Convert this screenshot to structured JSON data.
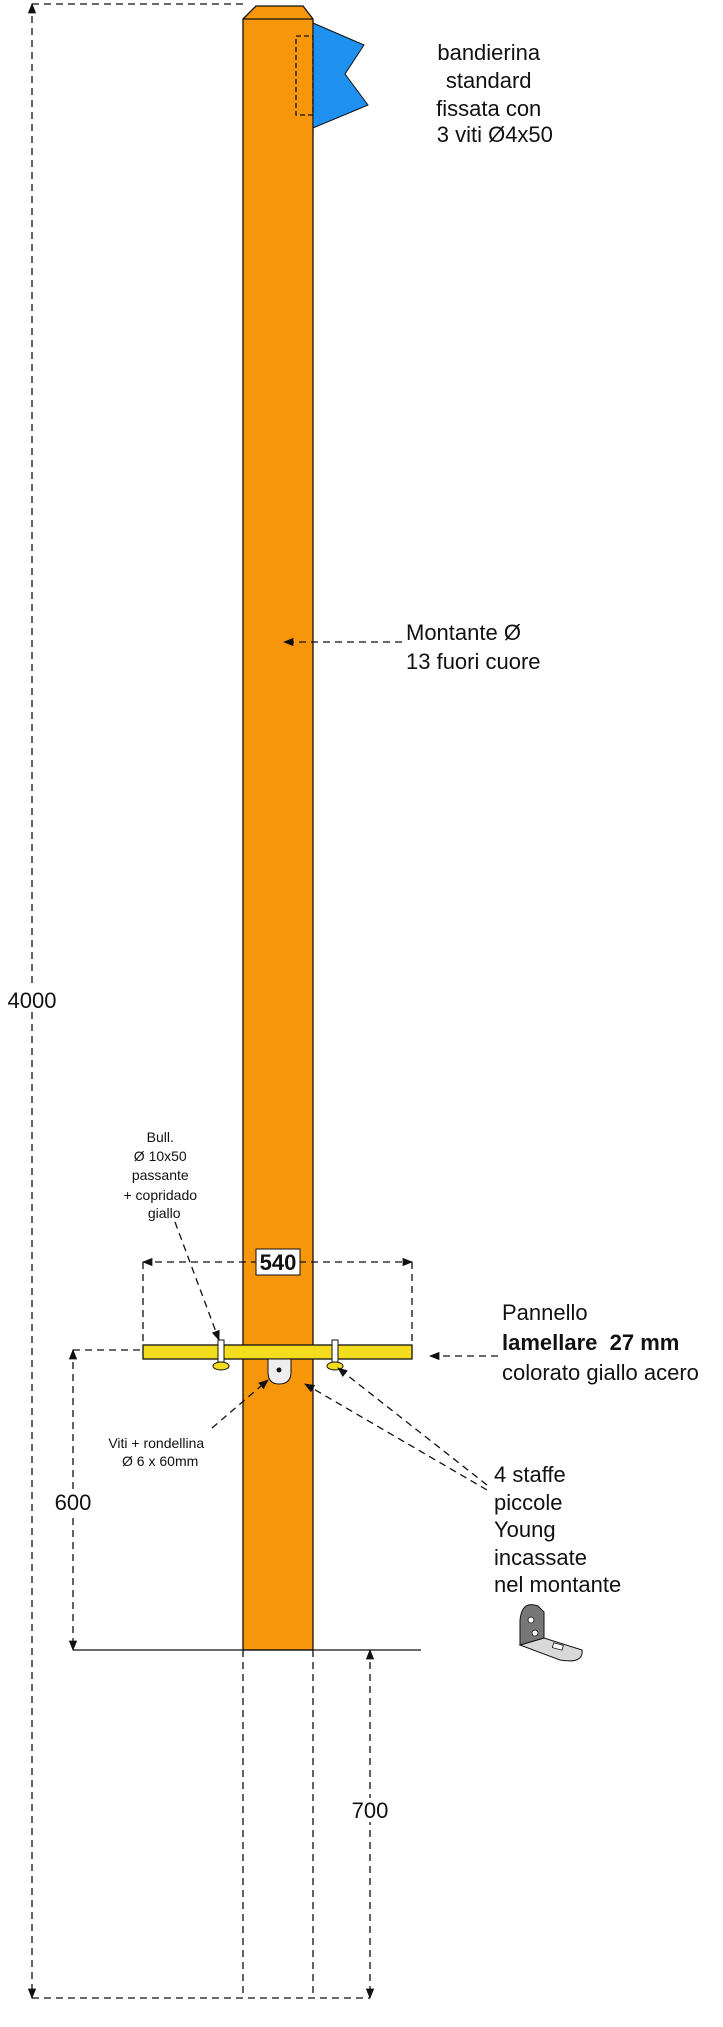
{
  "flag_note": [
    "bandierina",
    "standard",
    "fissata con",
    "3 viti Ø4x50"
  ],
  "post_note": [
    "Montante Ø",
    "13 fuori cuore"
  ],
  "dimensions": {
    "total_height": 4000,
    "panel_width": 540,
    "panel_height": 600,
    "buried_depth": 700
  },
  "bolt_note": [
    "Bull.",
    "Ø 10x50",
    "passante",
    "+ copridado",
    "giallo"
  ],
  "screw_note": [
    "Viti + rondellina",
    "Ø 6 x 60mm"
  ],
  "panel_note": [
    "Pannello",
    "lamellare  27 mm",
    "colorato giallo acero"
  ],
  "bracket_note": [
    "4 staffe",
    "piccole",
    "Young",
    "incassate",
    "nel montante"
  ]
}
